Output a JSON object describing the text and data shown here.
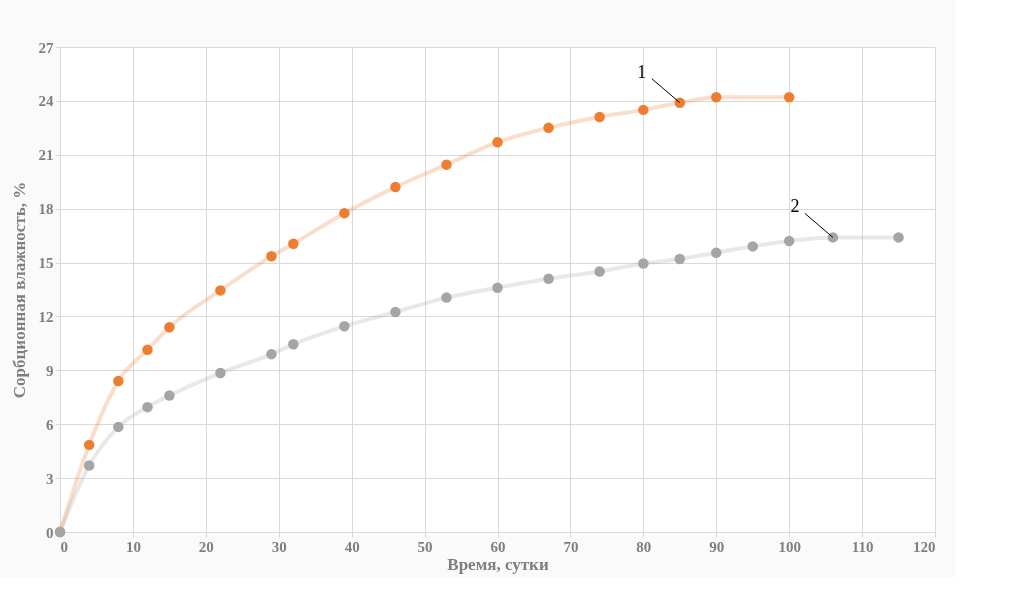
{
  "chart_data": {
    "type": "line",
    "xlabel": "Время, сутки",
    "ylabel": "Сорбционная влажность, %",
    "xlim": [
      0,
      120
    ],
    "xticks": [
      0,
      10,
      20,
      30,
      40,
      50,
      60,
      70,
      80,
      90,
      100,
      110,
      120
    ],
    "ylim": [
      0,
      27
    ],
    "yticks": [
      0,
      3,
      6,
      9,
      12,
      15,
      18,
      21,
      24,
      27
    ],
    "grid": true,
    "legend": false,
    "marker": "circle",
    "line_style": "solid",
    "series": [
      {
        "color": "#ed7d31",
        "x": [
          0,
          4,
          8,
          12,
          15,
          22,
          29,
          32,
          39,
          46,
          53,
          60,
          67,
          74,
          80,
          85,
          90,
          100
        ],
        "values": [
          0,
          4.85,
          8.4,
          10.15,
          11.4,
          13.45,
          15.35,
          16.05,
          17.75,
          19.2,
          20.45,
          21.7,
          22.5,
          23.1,
          23.5,
          23.9,
          24.2,
          24.2
        ]
      },
      {
        "color": "#a5a5a5",
        "x": [
          0,
          4,
          8,
          12,
          15,
          22,
          29,
          32,
          39,
          46,
          53,
          60,
          67,
          74,
          80,
          85,
          90,
          95,
          100,
          106,
          115
        ],
        "values": [
          0,
          3.7,
          5.85,
          6.95,
          7.6,
          8.85,
          9.9,
          10.45,
          11.45,
          12.25,
          13.05,
          13.6,
          14.1,
          14.5,
          14.95,
          15.2,
          15.55,
          15.9,
          16.2,
          16.4,
          16.4
        ]
      }
    ],
    "annotations": [
      {
        "text": "1",
        "x": 85,
        "y": 23.9
      },
      {
        "text": "2",
        "x": 106,
        "y": 16.4
      }
    ]
  }
}
